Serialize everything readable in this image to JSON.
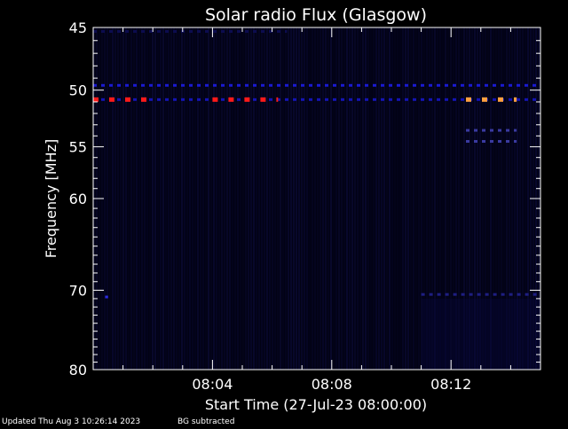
{
  "chart_data": {
    "type": "heatmap",
    "title": "Solar radio Flux (Glasgow)",
    "xlabel": "Start Time (27-Jul-23 08:00:00)",
    "ylabel": "Frequency [MHz]",
    "y_scale": "log",
    "ylim": [
      45,
      80
    ],
    "y_ticks": [
      45,
      50,
      55,
      60,
      70,
      80
    ],
    "x_range_minutes": [
      0,
      15
    ],
    "x_ticks": [
      {
        "minutes": 4,
        "label": "08:04"
      },
      {
        "minutes": 8,
        "label": "08:08"
      },
      {
        "minutes": 12,
        "label": "08:12"
      }
    ],
    "colormap": [
      "#000010",
      "#00005a",
      "#0000c8",
      "#ff1010",
      "#ffa040"
    ],
    "background_color": "#020214",
    "features": [
      {
        "freq_mhz": 49.6,
        "t_start": 0.0,
        "t_end": 15.0,
        "color": "#1a1ad2",
        "note": "persistent dashed band"
      },
      {
        "freq_mhz": 50.8,
        "t_start": 0.0,
        "t_end": 15.0,
        "color": "#1414b4",
        "note": "dashed band"
      },
      {
        "freq_mhz": 50.8,
        "t_start": 0.0,
        "t_end": 2.0,
        "color": "#ff1a1a",
        "note": "strong emission"
      },
      {
        "freq_mhz": 50.8,
        "t_start": 4.0,
        "t_end": 6.2,
        "color": "#ff1a1a",
        "note": "strong emission"
      },
      {
        "freq_mhz": 50.8,
        "t_start": 12.5,
        "t_end": 14.2,
        "color": "#ffa040",
        "note": "strongest emission"
      },
      {
        "freq_mhz": 53.5,
        "t_start": 12.5,
        "t_end": 14.2,
        "color": "#3a3aa0",
        "note": "weak band"
      },
      {
        "freq_mhz": 54.5,
        "t_start": 12.5,
        "t_end": 14.2,
        "color": "#3a3aa0",
        "note": "weak band"
      },
      {
        "freq_mhz": 70.5,
        "t_start": 11.0,
        "t_end": 15.0,
        "color": "#1e1e82",
        "note": "weak band"
      },
      {
        "freq_mhz": 70.8,
        "t_start": 0.4,
        "t_end": 0.5,
        "color": "#2a2ae0",
        "note": "isolated spot"
      },
      {
        "freq_mhz": 45.3,
        "t_start": 0.0,
        "t_end": 6.5,
        "color": "#0c0c50",
        "note": "faint band"
      }
    ]
  },
  "footer": {
    "updated": "Updated Thu Aug  3 10:26:14 2023",
    "bg_note": "BG subtracted"
  }
}
